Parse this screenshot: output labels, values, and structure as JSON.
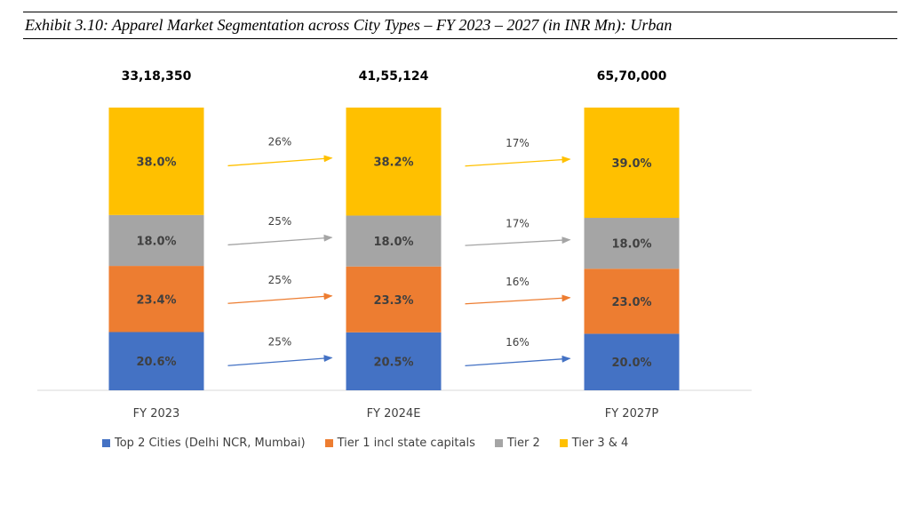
{
  "title": "Exhibit 3.10: Apparel Market Segmentation across City Types – FY 2023 – 2027 (in INR Mn):  Urban",
  "chart_data": {
    "type": "bar",
    "stacked": true,
    "categories": [
      "FY 2023",
      "FY 2024E",
      "FY  2027P"
    ],
    "totals": [
      "33,18,350",
      "41,55,124",
      "65,70,000"
    ],
    "series": [
      {
        "name": "Top 2 Cities (Delhi NCR, Mumbai)",
        "color": "#4472C4",
        "values": [
          20.6,
          20.5,
          20.0
        ],
        "labels": [
          "20.6%",
          "20.5%",
          "20.0%"
        ],
        "growth": [
          "25%",
          "16%"
        ]
      },
      {
        "name": "Tier 1 incl state capitals",
        "color": "#ED7D31",
        "values": [
          23.4,
          23.3,
          23.0
        ],
        "labels": [
          "23.4%",
          "23.3%",
          "23.0%"
        ],
        "growth": [
          "25%",
          "16%"
        ]
      },
      {
        "name": "Tier 2",
        "color": "#A5A5A5",
        "values": [
          18.0,
          18.0,
          18.0
        ],
        "labels": [
          "18.0%",
          "18.0%",
          "18.0%"
        ],
        "growth": [
          "25%",
          "17%"
        ]
      },
      {
        "name": "Tier 3 & 4",
        "color": "#FFC000",
        "values": [
          38.0,
          38.2,
          39.0
        ],
        "labels": [
          "38.0%",
          "38.2%",
          "39.0%"
        ],
        "growth": [
          "26%",
          "17%"
        ]
      }
    ],
    "ylim": [
      0,
      100
    ],
    "legend_position": "bottom",
    "grid": false
  }
}
